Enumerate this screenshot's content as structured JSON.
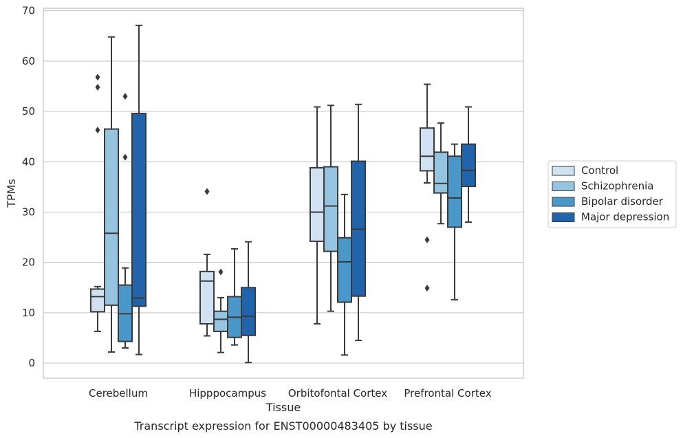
{
  "chart_data": {
    "type": "box",
    "title": "",
    "caption": "Transcript expression for ENST00000483405 by tissue",
    "xlabel": "Tissue",
    "ylabel": "TPMs",
    "ylim": [
      -3,
      70.5
    ],
    "yticks": [
      0,
      10,
      20,
      30,
      40,
      50,
      60,
      70
    ],
    "grid": "horizontal",
    "legend_position": "right-center",
    "categories": [
      "Cerebellum",
      "Hipppocampus",
      "Orbitofontal Cortex",
      "Prefrontal Cortex"
    ],
    "series": [
      {
        "name": "Control",
        "color": "#d0e1f2",
        "boxes": [
          {
            "whisker_low": 6.3,
            "q1": 10.2,
            "median": 13.2,
            "q3": 14.7,
            "whisker_high": 15.2,
            "outliers": [
              46.3,
              54.8,
              56.8
            ]
          },
          {
            "whisker_low": 5.4,
            "q1": 7.8,
            "median": 16.3,
            "q3": 18.2,
            "whisker_high": 21.6,
            "outliers": [
              34.1
            ]
          },
          {
            "whisker_low": 7.8,
            "q1": 24.2,
            "median": 30.0,
            "q3": 38.8,
            "whisker_high": 50.9,
            "outliers": []
          },
          {
            "whisker_low": 35.8,
            "q1": 38.2,
            "median": 41.1,
            "q3": 46.7,
            "whisker_high": 55.4,
            "outliers": [
              24.5,
              14.9
            ]
          }
        ]
      },
      {
        "name": "Schizophrenia",
        "color": "#94c4df",
        "boxes": [
          {
            "whisker_low": 2.2,
            "q1": 11.5,
            "median": 25.8,
            "q3": 46.5,
            "whisker_high": 64.8,
            "outliers": []
          },
          {
            "whisker_low": 2.1,
            "q1": 6.3,
            "median": 8.7,
            "q3": 10.3,
            "whisker_high": 13.0,
            "outliers": [
              18.1
            ]
          },
          {
            "whisker_low": 10.3,
            "q1": 22.2,
            "median": 31.2,
            "q3": 39.0,
            "whisker_high": 51.2,
            "outliers": []
          },
          {
            "whisker_low": 27.7,
            "q1": 33.8,
            "median": 35.7,
            "q3": 41.9,
            "whisker_high": 47.7,
            "outliers": []
          }
        ]
      },
      {
        "name": "Bipolar disorder",
        "color": "#4a98c9",
        "boxes": [
          {
            "whisker_low": 3.0,
            "q1": 4.3,
            "median": 9.8,
            "q3": 15.5,
            "whisker_high": 18.9,
            "outliers": [
              40.9,
              53.0
            ]
          },
          {
            "whisker_low": 3.6,
            "q1": 5.1,
            "median": 9.1,
            "q3": 13.2,
            "whisker_high": 22.7,
            "outliers": []
          },
          {
            "whisker_low": 1.6,
            "q1": 12.1,
            "median": 20.1,
            "q3": 24.9,
            "whisker_high": 33.5,
            "outliers": []
          },
          {
            "whisker_low": 12.6,
            "q1": 27.0,
            "median": 32.8,
            "q3": 41.1,
            "whisker_high": 43.5,
            "outliers": []
          }
        ]
      },
      {
        "name": "Major depression",
        "color": "#2164ab",
        "boxes": [
          {
            "whisker_low": 1.7,
            "q1": 11.3,
            "median": 12.9,
            "q3": 49.6,
            "whisker_high": 67.1,
            "outliers": []
          },
          {
            "whisker_low": 0.1,
            "q1": 5.5,
            "median": 9.3,
            "q3": 15.0,
            "whisker_high": 24.1,
            "outliers": []
          },
          {
            "whisker_low": 4.5,
            "q1": 13.3,
            "median": 26.6,
            "q3": 40.1,
            "whisker_high": 51.4,
            "outliers": []
          },
          {
            "whisker_low": 28.0,
            "q1": 35.1,
            "median": 38.3,
            "q3": 43.5,
            "whisker_high": 50.9,
            "outliers": []
          }
        ]
      }
    ]
  }
}
